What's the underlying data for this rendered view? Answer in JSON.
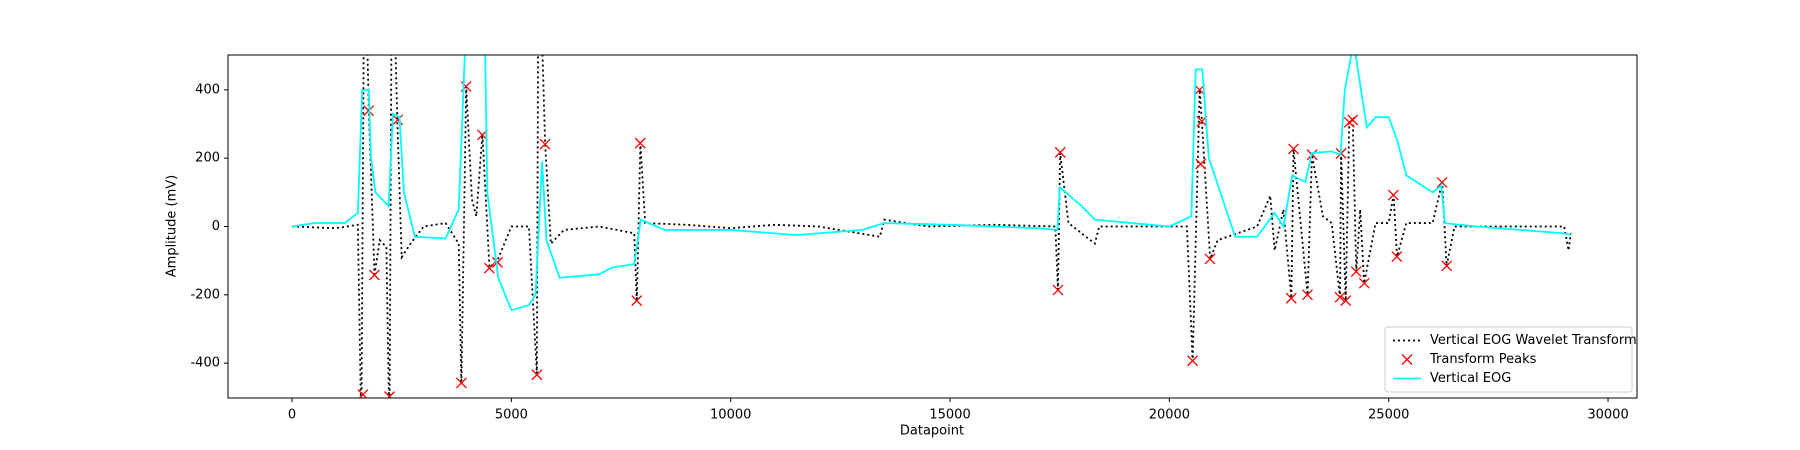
{
  "chart_data": {
    "type": "line",
    "xlabel": "Datapoint",
    "ylabel": "Amplitude (mV)",
    "xlim": [
      -1460,
      30660
    ],
    "ylim": [
      -502,
      502
    ],
    "xticks": [
      0,
      5000,
      10000,
      15000,
      20000,
      25000,
      30000
    ],
    "yticks": [
      -400,
      -200,
      0,
      200,
      400
    ],
    "grid": false,
    "legend": "lower right",
    "series": [
      {
        "name": "Vertical EOG Wavelet Transform",
        "type": "line",
        "style": "dotted",
        "color": "#000000",
        "x": [
          0,
          1000,
          1500,
          1580,
          1650,
          1750,
          1880,
          2000,
          2150,
          2220,
          2280,
          2400,
          2500,
          2700,
          3000,
          3500,
          3800,
          3860,
          3970,
          4100,
          4200,
          4340,
          4500,
          4680,
          5000,
          5400,
          5580,
          5620,
          5770,
          5900,
          6200,
          7000,
          7800,
          7860,
          7940,
          8050,
          9000,
          10000,
          11000,
          12000,
          13400,
          13500,
          14500,
          16000,
          17400,
          17460,
          17510,
          17700,
          18000,
          18300,
          18400,
          20400,
          20530,
          20690,
          20740,
          20800,
          20930,
          21100,
          22000,
          22300,
          22400,
          22600,
          22780,
          22830,
          23000,
          23150,
          23250,
          23500,
          23700,
          23890,
          23915,
          24020,
          24100,
          24180,
          24260,
          24350,
          24440,
          24700,
          25000,
          25110,
          25190,
          25400,
          26000,
          26220,
          26320,
          26500,
          29000,
          29100,
          29150
        ],
        "values": [
          0,
          -5,
          5,
          -600,
          900,
          340,
          -140,
          -40,
          -60,
          -600,
          900,
          310,
          -90,
          -50,
          0,
          10,
          -50,
          -460,
          410,
          80,
          30,
          270,
          -120,
          -100,
          0,
          0,
          -430,
          900,
          240,
          -50,
          -10,
          0,
          -20,
          -220,
          245,
          10,
          5,
          -5,
          5,
          0,
          -30,
          20,
          0,
          5,
          0,
          -185,
          215,
          10,
          -20,
          -50,
          0,
          0,
          -395,
          400,
          310,
          180,
          -95,
          -40,
          0,
          90,
          -70,
          50,
          -210,
          225,
          0,
          -200,
          210,
          30,
          10,
          -207,
          214,
          -217,
          305,
          312,
          -132,
          50,
          -166,
          10,
          10,
          92,
          -88,
          10,
          10,
          130,
          -115,
          0,
          0,
          -70,
          -20
        ]
      },
      {
        "name": "Transform Peaks",
        "type": "scatter",
        "marker": "x",
        "color": "#ff0000",
        "x": [
          1614,
          1746,
          1878,
          2222,
          2407,
          3862,
          3968,
          4339,
          4497,
          4683,
          5582,
          5767,
          7857,
          7937,
          17460,
          17513,
          20529,
          20688,
          20714,
          20741,
          20926,
          22778,
          22831,
          23148,
          23254,
          23889,
          23915,
          24021,
          24101,
          24180,
          24259,
          24444,
          25106,
          25185,
          26217,
          26323
        ],
        "values": [
          -492,
          339,
          -142,
          -498,
          312,
          -458,
          410,
          268,
          -122,
          -105,
          -434,
          241,
          -217,
          244,
          -186,
          217,
          -393,
          400,
          183,
          308,
          -95,
          -210,
          227,
          -200,
          210,
          -207,
          214,
          -217,
          305,
          312,
          -132,
          -166,
          92,
          -88,
          129,
          -115
        ]
      },
      {
        "name": "Vertical EOG",
        "type": "line",
        "style": "solid",
        "color": "#00ffff",
        "x": [
          0,
          500,
          1200,
          1500,
          1600,
          1750,
          1800,
          1900,
          2200,
          2300,
          2450,
          2550,
          2800,
          3500,
          3800,
          3950,
          4400,
          4450,
          4700,
          5000,
          5400,
          5550,
          5700,
          5800,
          6100,
          7000,
          7300,
          7800,
          7950,
          8500,
          10000,
          11500,
          13000,
          13500,
          15000,
          17000,
          17450,
          17500,
          18000,
          18300,
          20000,
          20500,
          20600,
          20750,
          20900,
          21500,
          22000,
          22400,
          22600,
          22800,
          23100,
          23250,
          23700,
          23900,
          24000,
          24200,
          24500,
          24700,
          25000,
          25200,
          25400,
          26000,
          26200,
          26280,
          27000,
          29000,
          29150
        ],
        "values": [
          0,
          10,
          10,
          40,
          400,
          400,
          200,
          100,
          60,
          330,
          320,
          100,
          -30,
          -35,
          50,
          540,
          540,
          100,
          -150,
          -245,
          -230,
          -200,
          190,
          -40,
          -150,
          -140,
          -120,
          -110,
          20,
          -10,
          -10,
          -25,
          -10,
          10,
          5,
          -5,
          -10,
          115,
          60,
          20,
          0,
          30,
          460,
          460,
          200,
          -30,
          -30,
          40,
          0,
          150,
          130,
          215,
          220,
          210,
          400,
          540,
          290,
          320,
          320,
          250,
          150,
          100,
          120,
          10,
          0,
          -20,
          -25
        ]
      }
    ]
  }
}
